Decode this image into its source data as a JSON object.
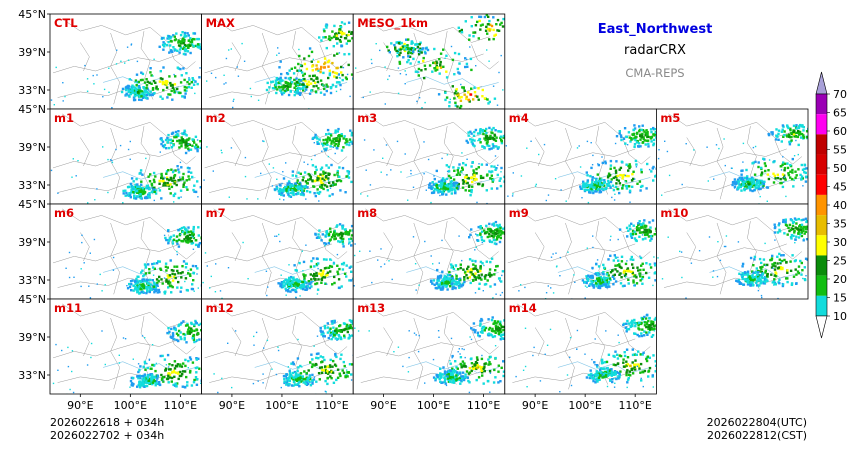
{
  "header": {
    "region": "East_Northwest",
    "variable": "radarCRX",
    "model": "CMA-REPS"
  },
  "axes": {
    "lat_labels": [
      "45°N",
      "39°N",
      "33°N"
    ],
    "lon_labels": [
      "90°E",
      "100°E",
      "110°E"
    ]
  },
  "panels": [
    {
      "label": "CTL",
      "row": 0,
      "col": 0,
      "style": "ens"
    },
    {
      "label": "MAX",
      "row": 0,
      "col": 1,
      "style": "max"
    },
    {
      "label": "MESO_1km",
      "row": 0,
      "col": 2,
      "style": "meso"
    },
    {
      "label": "m1",
      "row": 1,
      "col": 0,
      "style": "ens"
    },
    {
      "label": "m2",
      "row": 1,
      "col": 1,
      "style": "ens"
    },
    {
      "label": "m3",
      "row": 1,
      "col": 2,
      "style": "ens"
    },
    {
      "label": "m4",
      "row": 1,
      "col": 3,
      "style": "ens"
    },
    {
      "label": "m5",
      "row": 1,
      "col": 4,
      "style": "ens"
    },
    {
      "label": "m6",
      "row": 2,
      "col": 0,
      "style": "ens"
    },
    {
      "label": "m7",
      "row": 2,
      "col": 1,
      "style": "ens"
    },
    {
      "label": "m8",
      "row": 2,
      "col": 2,
      "style": "ens"
    },
    {
      "label": "m9",
      "row": 2,
      "col": 3,
      "style": "ens"
    },
    {
      "label": "m10",
      "row": 2,
      "col": 4,
      "style": "ens"
    },
    {
      "label": "m11",
      "row": 3,
      "col": 0,
      "style": "ens"
    },
    {
      "label": "m12",
      "row": 3,
      "col": 1,
      "style": "ens"
    },
    {
      "label": "m13",
      "row": 3,
      "col": 2,
      "style": "ens"
    },
    {
      "label": "m14",
      "row": 3,
      "col": 3,
      "style": "ens"
    }
  ],
  "colorbar": {
    "levels": [
      10,
      15,
      20,
      25,
      30,
      35,
      40,
      45,
      50,
      55,
      60,
      65,
      70
    ],
    "colors": [
      "#1e9cf0",
      "#13dcdc",
      "#12be12",
      "#0a8c0a",
      "#ffff00",
      "#e8bd00",
      "#ff9400",
      "#ff0000",
      "#d70000",
      "#bf0000",
      "#ff00f0",
      "#9a00b4",
      "#a8a0d8"
    ]
  },
  "footer": {
    "init_line1": "2026022618  +  034h",
    "init_line2": "2026022702  +  034h",
    "valid_utc": "2026022804(UTC)",
    "valid_cst": "2026022812(CST)"
  }
}
